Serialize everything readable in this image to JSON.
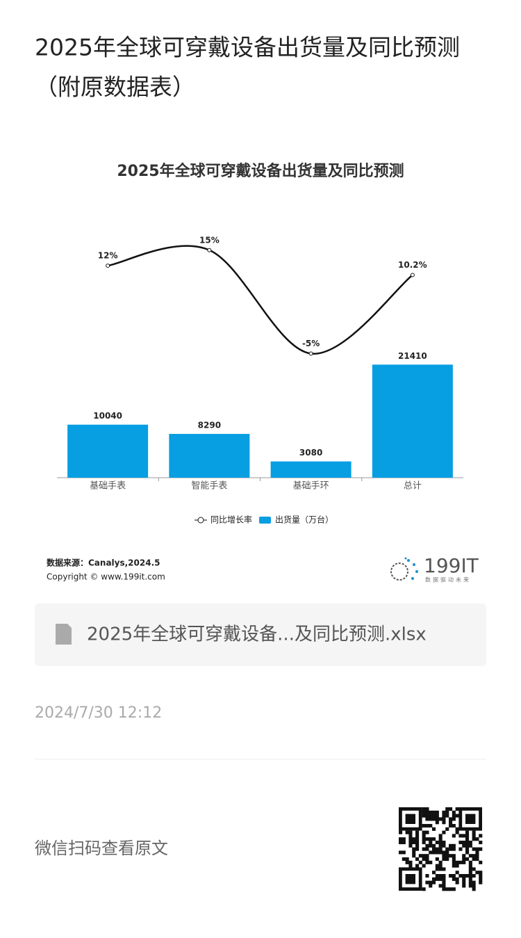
{
  "page_title": "2025年全球可穿戴设备出货量及同比预测（附原数据表）",
  "chart_data": {
    "type": "bar",
    "title": "2025年全球可穿戴设备出货量及同比预测",
    "categories": [
      "基础手表",
      "智能手表",
      "基础手环",
      "总计"
    ],
    "series": [
      {
        "name": "出货量（万台）",
        "type": "bar",
        "color": "#079ee2",
        "values": [
          10040,
          8290,
          3080,
          21410
        ]
      },
      {
        "name": "同比增长率",
        "type": "line",
        "axis": "y2",
        "color": "#111111",
        "values": [
          12,
          15,
          -5,
          10.2
        ],
        "value_labels": [
          "12%",
          "15%",
          "-5%",
          "10.2%"
        ]
      }
    ],
    "ylim": [
      0,
      47000
    ],
    "y2lim": [
      -29,
      19
    ],
    "legend": "bottom",
    "source": "数据来源：Canalys,2024.5",
    "copyright": "Copyright © www.199it.com"
  },
  "logo": {
    "name": "199IT",
    "slogan": "数据驱动未来"
  },
  "attachment": "2025年全球可穿戴设备...及同比预测.xlsx",
  "date": "2024/7/30 12:12",
  "qr_caption": "微信扫码查看原文"
}
